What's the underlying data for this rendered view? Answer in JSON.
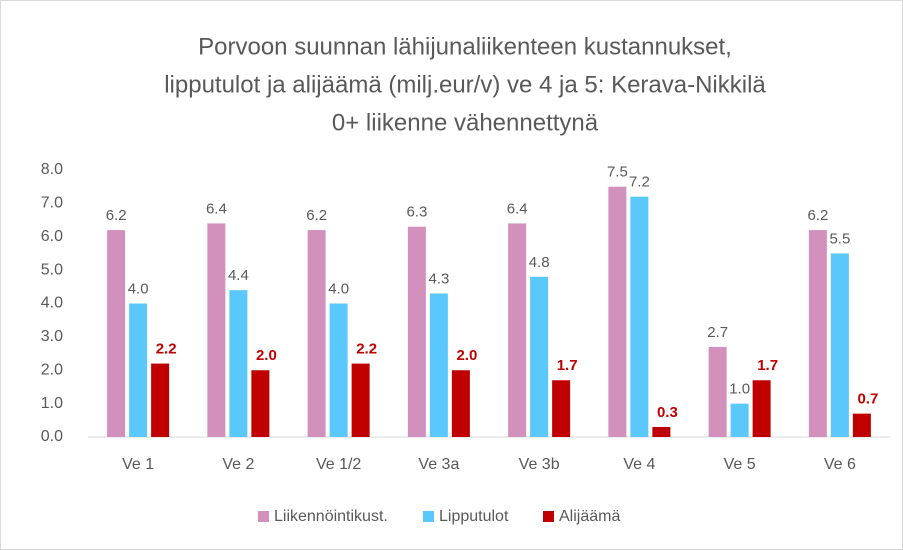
{
  "chart_data": {
    "type": "bar",
    "title": [
      "Porvoon suunnan lähijunaliikenteen kustannukset,",
      "lipputulot ja alijäämä (milj.eur/v) ve 4 ja 5: Kerava-Nikkilä",
      "0+ liikenne vähennettynä"
    ],
    "categories": [
      "Ve 1",
      "Ve 2",
      "Ve 1/2",
      "Ve 3a",
      "Ve 3b",
      "Ve 4",
      "Ve 5",
      "Ve 6"
    ],
    "series": [
      {
        "name": "Liikennöintikust.",
        "color": "#d291bc",
        "values": [
          6.2,
          6.4,
          6.2,
          6.3,
          6.4,
          7.5,
          2.7,
          6.2
        ]
      },
      {
        "name": "Lipputulot",
        "color": "#5bc8fb",
        "values": [
          4.0,
          4.4,
          4.0,
          4.3,
          4.8,
          7.2,
          1.0,
          5.5
        ],
        "value_labels": [
          "4.0",
          "4.4",
          "4.0",
          "4.3",
          "4.8",
          "7.2",
          "1.0",
          "5.5"
        ]
      },
      {
        "name": "Alijäämä",
        "color": "#c00000",
        "label_color": "#c00000",
        "values": [
          2.2,
          2.0,
          2.2,
          2.0,
          1.7,
          0.3,
          1.7,
          0.7
        ],
        "value_labels": [
          "2.2",
          "2.0",
          "2.2",
          "2.0",
          "1.7",
          "0.3",
          "1.7",
          "0.7"
        ]
      }
    ],
    "ylim": [
      0,
      8
    ],
    "yticks": [
      {
        "value": 0,
        "label": "0.0"
      },
      {
        "value": 1,
        "label": "1.0"
      },
      {
        "value": 2,
        "label": "2.0"
      },
      {
        "value": 3,
        "label": "3.0"
      },
      {
        "value": 4,
        "label": "4.0"
      },
      {
        "value": 5,
        "label": "5.0"
      },
      {
        "value": 6,
        "label": "6.0"
      },
      {
        "value": 7,
        "label": "7.0"
      },
      {
        "value": 8,
        "label": "8.0"
      }
    ],
    "grid": false,
    "legend": "bottom"
  }
}
